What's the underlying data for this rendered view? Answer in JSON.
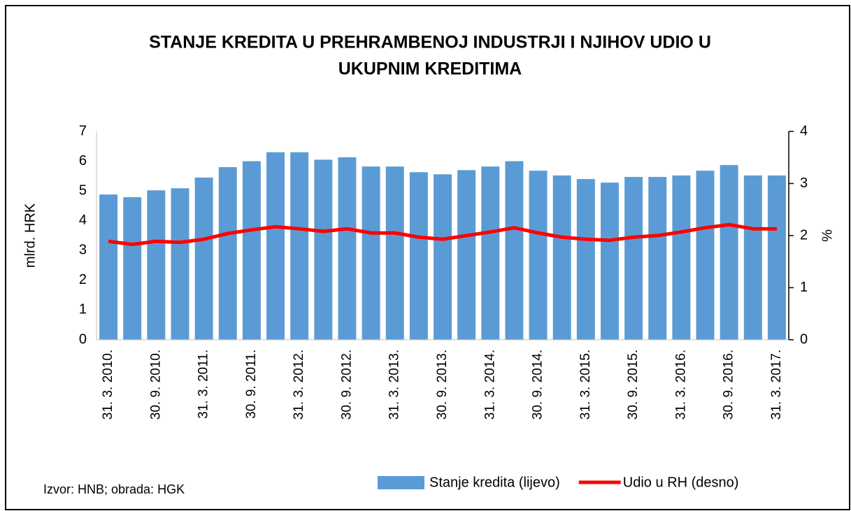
{
  "chart_data": {
    "type": "bar-line",
    "title": [
      "STANJE KREDITA U PREHRAMBENOJ INDUSTRJI I NJIHOV UDIO U",
      "UKUPNIM KREDITIMA"
    ],
    "ylabel": "mlrd. HRK",
    "y2label": "%",
    "source": "Izvor: HNB; obrada: HGK",
    "categories": [
      "31. 3. 2010.",
      null,
      "30. 9. 2010.",
      null,
      "31. 3. 2011.",
      null,
      "30. 9. 2011.",
      null,
      "31. 3. 2012.",
      null,
      "30. 9. 2012.",
      null,
      "31. 3. 2013.",
      null,
      "30. 9. 2013.",
      null,
      "31. 3. 2014.",
      null,
      "30. 9. 2014.",
      null,
      "31. 3. 2015.",
      null,
      "30. 9. 2015.",
      null,
      "31. 3. 2016.",
      null,
      "30. 9. 2016.",
      null,
      "31. 3. 2017."
    ],
    "series": [
      {
        "name": "Stanje kredita (lijevo)",
        "type": "bar",
        "color": "#5b9bd5",
        "values": [
          4.88,
          4.79,
          5.02,
          5.09,
          5.45,
          5.8,
          6.0,
          6.3,
          6.3,
          6.05,
          6.13,
          5.82,
          5.82,
          5.63,
          5.56,
          5.7,
          5.82,
          6.0,
          5.68,
          5.52,
          5.4,
          5.28,
          5.47,
          5.47,
          5.52,
          5.68,
          5.87,
          5.52,
          5.52
        ]
      },
      {
        "name": "Udio u RH (desno)",
        "type": "line",
        "axis": "y2",
        "color": "#ff0000",
        "values": [
          1.89,
          1.83,
          1.89,
          1.87,
          1.93,
          2.04,
          2.11,
          2.17,
          2.13,
          2.08,
          2.13,
          2.05,
          2.05,
          1.97,
          1.93,
          2.0,
          2.07,
          2.15,
          2.05,
          1.97,
          1.93,
          1.91,
          1.97,
          2.0,
          2.07,
          2.15,
          2.21,
          2.13,
          2.13
        ]
      }
    ],
    "ylim": [
      0,
      7
    ],
    "yticks": [
      0,
      1,
      2,
      3,
      4,
      5,
      6,
      7
    ],
    "y2lim": [
      0,
      4
    ],
    "y2ticks": [
      0,
      1,
      2,
      3,
      4
    ],
    "grid": false,
    "legend": "bottom"
  }
}
